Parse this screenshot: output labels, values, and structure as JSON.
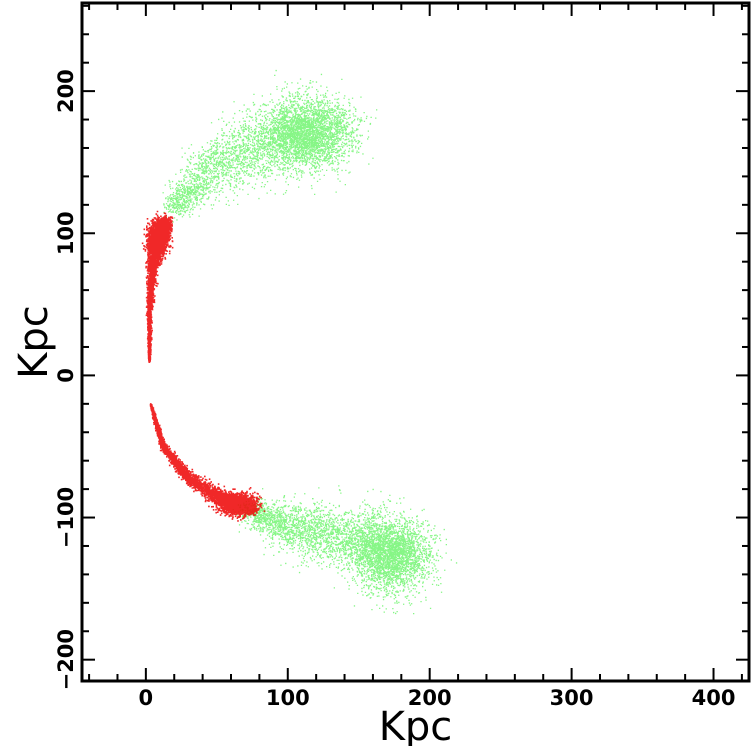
{
  "chart_data": {
    "type": "scatter",
    "xlabel": "Kpc",
    "ylabel": "Kpc",
    "xlim": [
      -45,
      425
    ],
    "ylim": [
      -215,
      262
    ],
    "x_ticks": [
      0,
      100,
      200,
      300,
      400
    ],
    "y_ticks": [
      -200,
      -100,
      0,
      100,
      200
    ],
    "x_tick_labels": [
      "0",
      "100",
      "200",
      "300",
      "400"
    ],
    "y_tick_labels": [
      "−200",
      "−100",
      "0",
      "100",
      "200"
    ],
    "x_minor_step": 20,
    "y_minor_step": 20,
    "grid": false,
    "legend": "none",
    "series": [
      {
        "color": "#22ee22",
        "density": "diffuse",
        "point_count": 5200,
        "spine": [
          [
            18,
            118
          ],
          [
            50,
            148
          ],
          [
            85,
            165
          ],
          [
            112,
            170
          ],
          [
            140,
            172
          ]
        ],
        "spread": [
          7,
          20,
          24,
          24,
          20
        ],
        "clumps": [
          {
            "x": 112,
            "y": 172,
            "rx": 26,
            "ry": 24,
            "weight": 0.35
          }
        ]
      },
      {
        "color": "#22ee22",
        "density": "diffuse",
        "point_count": 5200,
        "spine": [
          [
            72,
            -95
          ],
          [
            105,
            -108
          ],
          [
            140,
            -114
          ],
          [
            168,
            -121
          ],
          [
            186,
            -130
          ]
        ],
        "spread": [
          8,
          18,
          22,
          24,
          22
        ],
        "clumps": [
          {
            "x": 172,
            "y": -126,
            "rx": 25,
            "ry": 24,
            "weight": 0.35
          }
        ]
      },
      {
        "color": "#ee1111",
        "density": "dense",
        "point_count": 5000,
        "spine": [
          [
            2,
            10
          ],
          [
            2,
            45
          ],
          [
            4,
            75
          ],
          [
            7,
            92
          ],
          [
            10,
            102
          ],
          [
            14,
            108
          ]
        ],
        "spread": [
          0.6,
          1.6,
          3.5,
          5,
          6,
          4
        ],
        "clumps": [
          {
            "x": 8,
            "y": 97,
            "rx": 6,
            "ry": 11,
            "weight": 0.3
          }
        ]
      },
      {
        "color": "#ee1111",
        "density": "dense",
        "point_count": 5000,
        "spine": [
          [
            3,
            -20
          ],
          [
            12,
            -50
          ],
          [
            30,
            -72
          ],
          [
            52,
            -86
          ],
          [
            68,
            -91
          ],
          [
            75,
            -93
          ]
        ],
        "spread": [
          0.6,
          2,
          4,
          5.5,
          6,
          4
        ],
        "clumps": [
          {
            "x": 64,
            "y": -90,
            "rx": 11,
            "ry": 6,
            "weight": 0.3
          }
        ]
      }
    ]
  }
}
